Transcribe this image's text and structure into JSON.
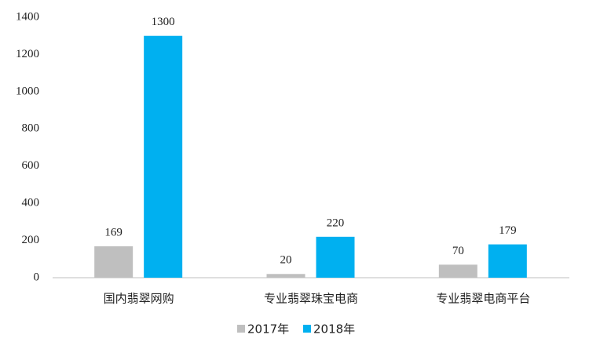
{
  "chart_data": {
    "type": "bar",
    "categories": [
      "国内翡翠网购",
      "专业翡翠珠宝电商",
      "专业翡翠电商平台"
    ],
    "series": [
      {
        "name": "2017年",
        "color": "#bfbfbf",
        "values": [
          169,
          20,
          70
        ]
      },
      {
        "name": "2018年",
        "color": "#00b0f0",
        "values": [
          1300,
          220,
          179
        ]
      }
    ],
    "ylim": [
      0,
      1400
    ],
    "yticks": [
      0,
      200,
      400,
      600,
      800,
      1000,
      1200,
      1400
    ],
    "grid": false,
    "legend": "bottom"
  }
}
